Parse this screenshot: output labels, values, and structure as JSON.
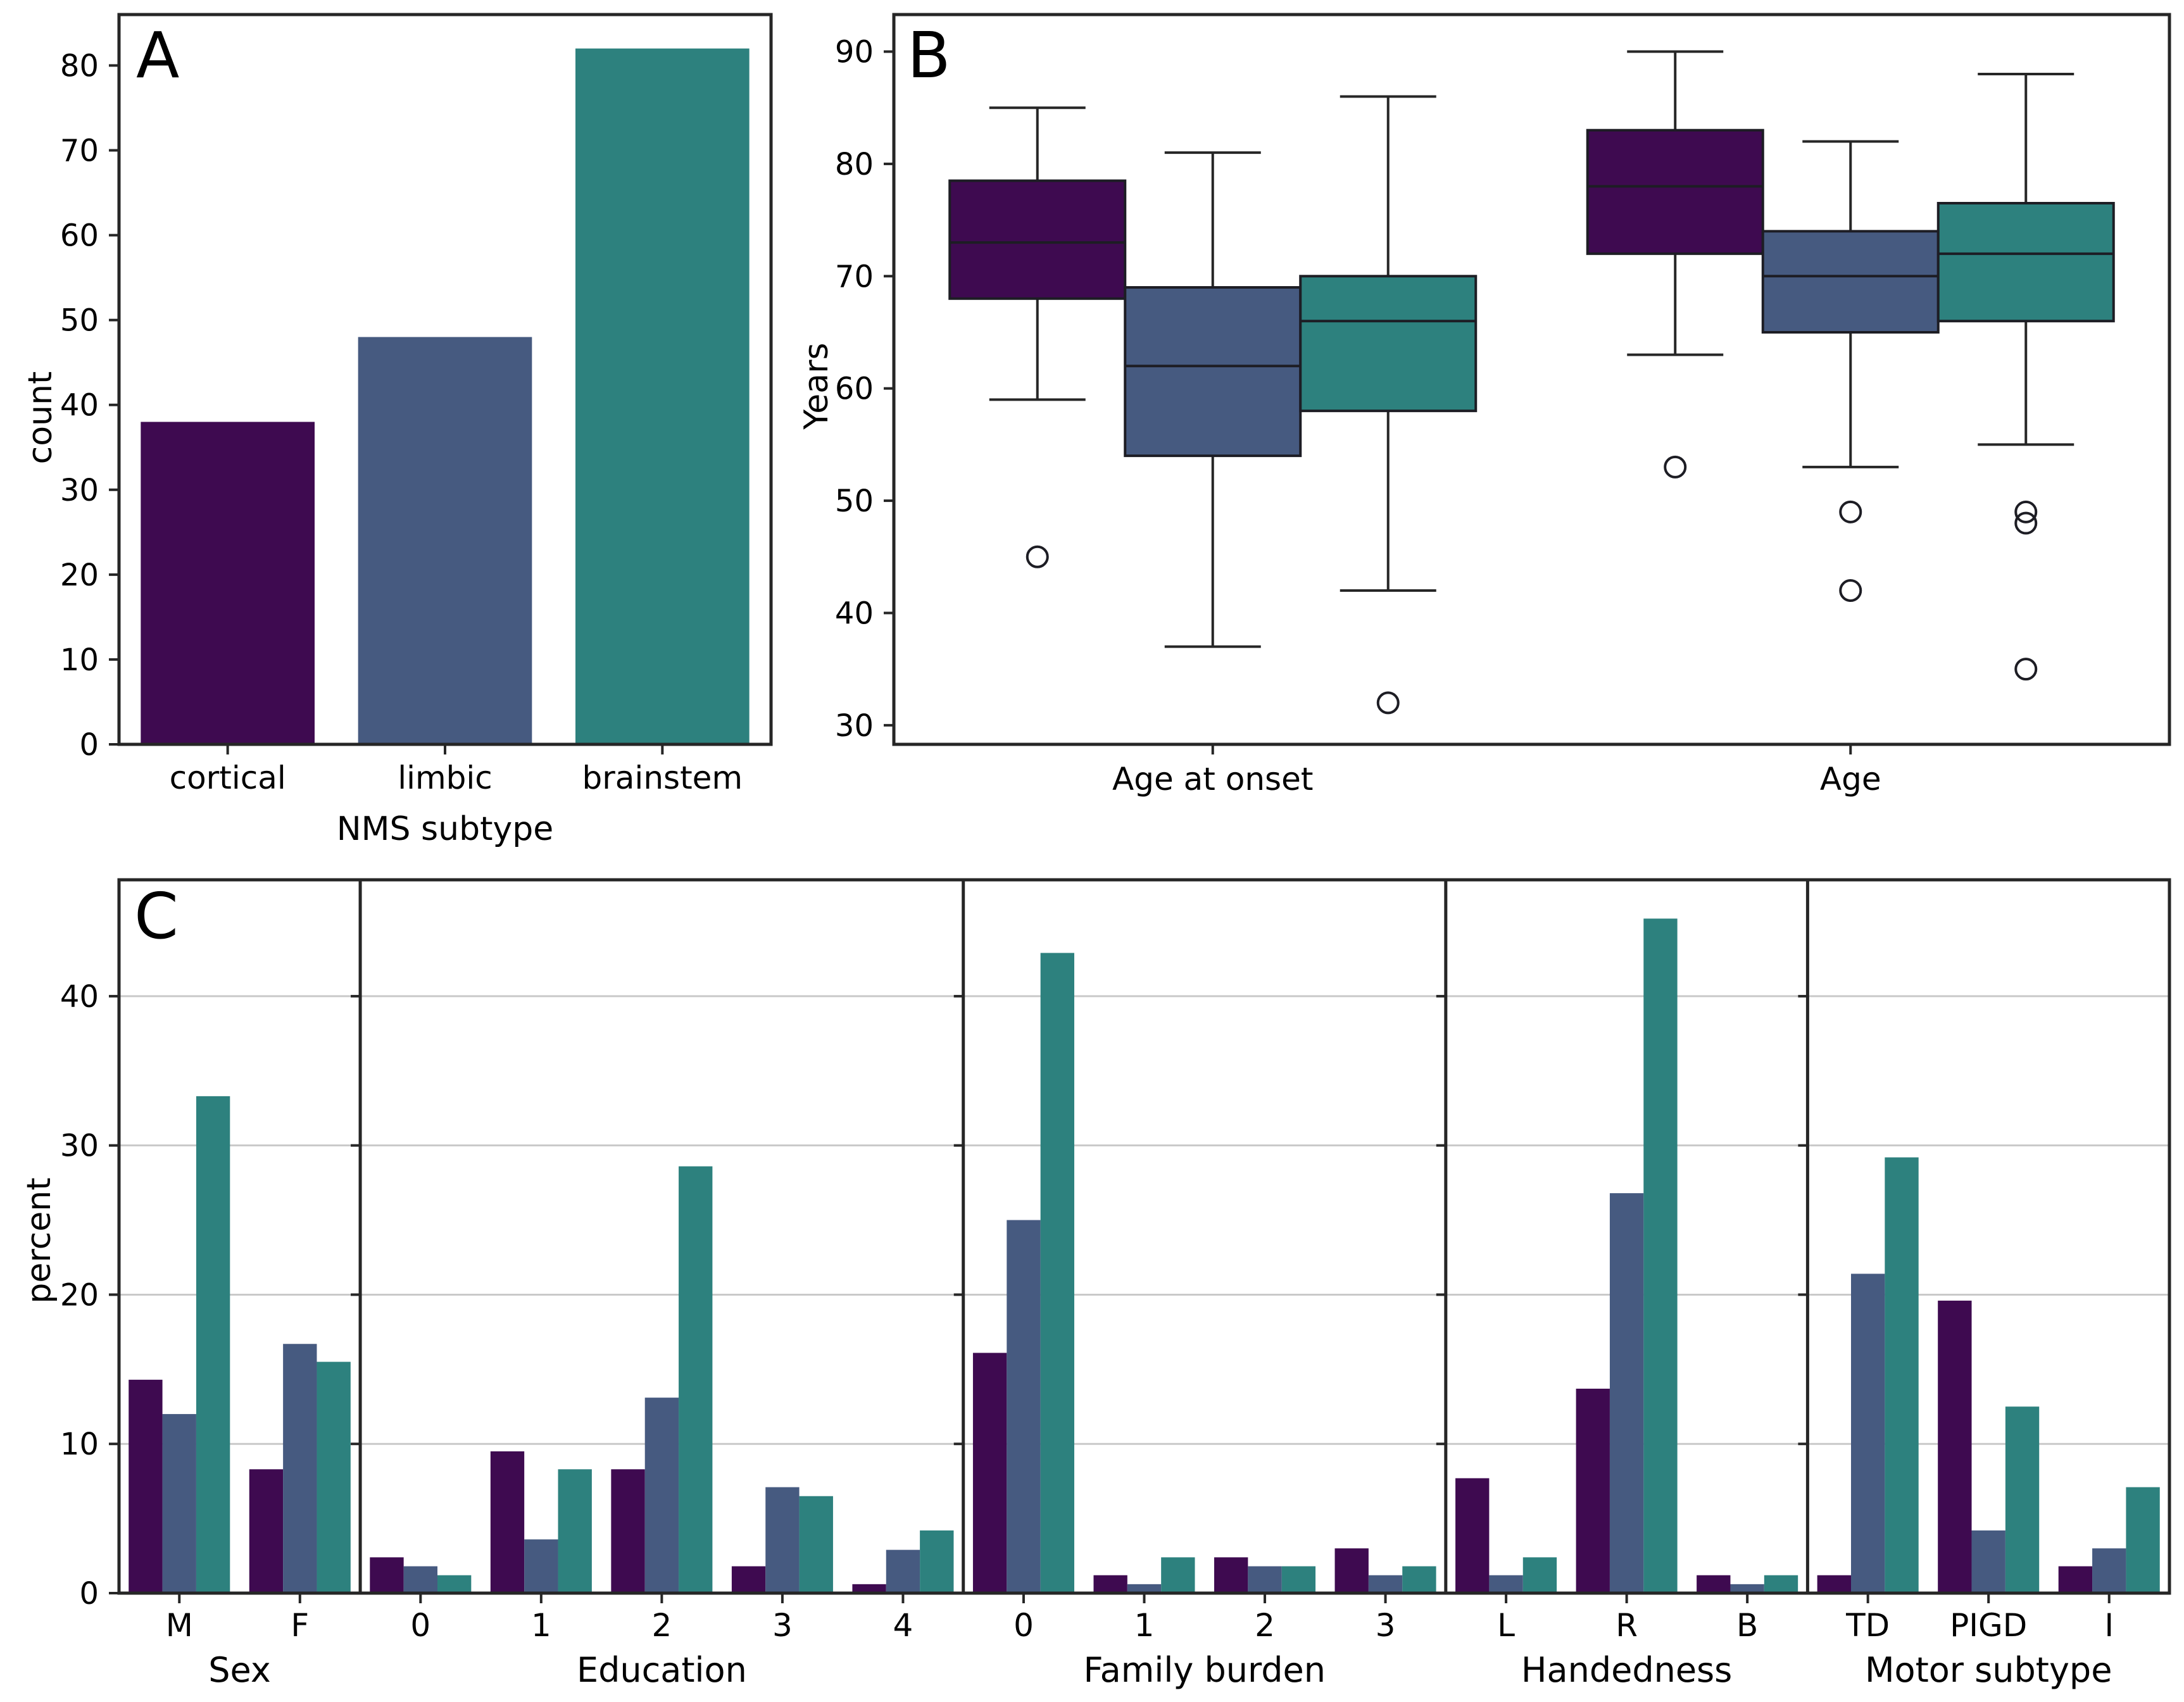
{
  "figure": {
    "background": "#ffffff",
    "ink_color": "#262626",
    "grid_color": "#c9c9c9",
    "series": [
      {
        "name": "cortical",
        "color": "#3e0a50"
      },
      {
        "name": "limbic",
        "color": "#465a80"
      },
      {
        "name": "brainstem",
        "color": "#2d817e"
      }
    ]
  },
  "chart_data": [
    {
      "panel_label": "A",
      "type": "bar",
      "title": "",
      "xlabel": "NMS subtype",
      "ylabel": "count",
      "categories": [
        "cortical",
        "limbic",
        "brainstem"
      ],
      "values": [
        38,
        48,
        82
      ],
      "bar_colors": [
        "#3e0a50",
        "#465a80",
        "#2d817e"
      ],
      "yticks": [
        0,
        10,
        20,
        30,
        40,
        50,
        60,
        70,
        80
      ],
      "ylim": [
        0,
        86
      ],
      "grid": false,
      "legend": "none"
    },
    {
      "panel_label": "B",
      "type": "boxplot",
      "title": "",
      "xlabel": "",
      "ylabel": "Years",
      "groups": [
        "Age at onset",
        "Age"
      ],
      "yticks": [
        30,
        40,
        50,
        60,
        70,
        80,
        90
      ],
      "ylim": [
        28.3,
        93.3
      ],
      "grid": false,
      "legend": "none",
      "series": [
        {
          "name": "cortical",
          "color": "#3e0a50",
          "boxes": [
            {
              "group": "Age at onset",
              "whisker_low": 59,
              "q1": 68,
              "median": 73,
              "q3": 78.5,
              "whisker_high": 85,
              "outliers": [
                45
              ]
            },
            {
              "group": "Age",
              "whisker_low": 63,
              "q1": 72,
              "median": 78,
              "q3": 83,
              "whisker_high": 90,
              "outliers": [
                53
              ]
            }
          ]
        },
        {
          "name": "limbic",
          "color": "#465a80",
          "boxes": [
            {
              "group": "Age at onset",
              "whisker_low": 37,
              "q1": 54,
              "median": 62,
              "q3": 69,
              "whisker_high": 81,
              "outliers": []
            },
            {
              "group": "Age",
              "whisker_low": 53,
              "q1": 65,
              "median": 70,
              "q3": 74,
              "whisker_high": 82,
              "outliers": [
                49,
                42
              ]
            }
          ]
        },
        {
          "name": "brainstem",
          "color": "#2d817e",
          "boxes": [
            {
              "group": "Age at onset",
              "whisker_low": 42,
              "q1": 58,
              "median": 66,
              "q3": 70,
              "whisker_high": 86,
              "outliers": [
                32
              ]
            },
            {
              "group": "Age",
              "whisker_low": 55,
              "q1": 66,
              "median": 72,
              "q3": 76.5,
              "whisker_high": 88,
              "outliers": [
                49,
                48,
                35
              ]
            }
          ]
        }
      ]
    },
    {
      "panel_label": "C",
      "type": "grouped_bar_facets",
      "title": "",
      "ylabel": "percent",
      "yticks": [
        0,
        10,
        20,
        30,
        40
      ],
      "ylim": [
        0,
        47.8
      ],
      "grid": true,
      "legend": "none",
      "series_names": [
        "cortical",
        "limbic",
        "brainstem"
      ],
      "series_colors": [
        "#3e0a50",
        "#465a80",
        "#2d817e"
      ],
      "facets": [
        {
          "label": "Sex",
          "categories": [
            "M",
            "F"
          ],
          "series": [
            [
              14.3,
              8.3
            ],
            [
              12.0,
              16.7
            ],
            [
              33.3,
              15.5
            ]
          ]
        },
        {
          "label": "Education",
          "categories": [
            "0",
            "1",
            "2",
            "3",
            "4"
          ],
          "series": [
            [
              2.4,
              9.5,
              8.3,
              1.8,
              0.6
            ],
            [
              1.8,
              3.6,
              13.1,
              7.1,
              2.9
            ],
            [
              1.2,
              8.3,
              28.6,
              6.5,
              4.2
            ]
          ]
        },
        {
          "label": "Family burden",
          "categories": [
            "0",
            "1",
            "2",
            "3"
          ],
          "series": [
            [
              16.1,
              1.2,
              2.4,
              3.0
            ],
            [
              25.0,
              0.6,
              1.8,
              1.2
            ],
            [
              42.9,
              2.4,
              1.8,
              1.8
            ]
          ]
        },
        {
          "label": "Handedness",
          "categories": [
            "L",
            "R",
            "B"
          ],
          "series": [
            [
              7.7,
              13.7,
              1.2
            ],
            [
              1.2,
              26.8,
              0.6
            ],
            [
              2.4,
              45.2,
              1.2
            ]
          ]
        },
        {
          "label": "Motor subtype",
          "categories": [
            "TD",
            "PIGD",
            "I"
          ],
          "series": [
            [
              1.2,
              19.6,
              1.8
            ],
            [
              21.4,
              4.2,
              3.0
            ],
            [
              29.2,
              12.5,
              7.1
            ]
          ]
        }
      ]
    }
  ]
}
